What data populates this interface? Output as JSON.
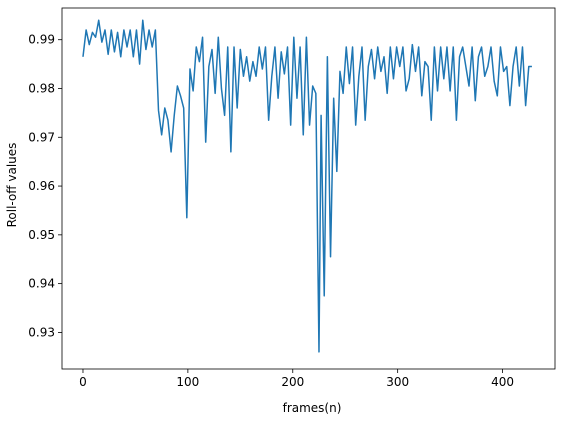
{
  "chart_data": {
    "type": "line",
    "title": "",
    "xlabel": "frames(n)",
    "ylabel": "Roll-off values",
    "xlim": [
      -20,
      450
    ],
    "ylim": [
      0.9225,
      0.9965
    ],
    "xticks": [
      0,
      100,
      200,
      300,
      400
    ],
    "yticks": [
      0.93,
      0.94,
      0.95,
      0.96,
      0.97,
      0.98,
      0.99
    ],
    "ytick_labels": [
      "0.93",
      "0.94",
      "0.95",
      "0.96",
      "0.97",
      "0.98",
      "0.99"
    ],
    "grid": false,
    "legend": "none",
    "line_color": "#1f77b4",
    "series": [
      {
        "x": [
          0,
          3,
          6,
          9,
          12,
          15,
          18,
          21,
          24,
          27,
          30,
          33,
          36,
          39,
          42,
          45,
          48,
          51,
          54,
          57,
          60,
          63,
          66,
          69,
          72,
          75,
          78,
          81,
          84,
          87,
          90,
          93,
          96,
          99,
          102,
          105,
          108,
          111,
          114,
          117,
          120,
          123,
          126,
          129,
          132,
          135,
          138,
          141,
          144,
          147,
          150,
          153,
          156,
          159,
          162,
          165,
          168,
          171,
          174,
          177,
          180,
          183,
          186,
          189,
          192,
          195,
          198,
          201,
          204,
          207,
          210,
          213,
          216,
          219,
          222,
          225,
          227,
          230,
          233,
          236,
          239,
          242,
          245,
          248,
          251,
          254,
          257,
          260,
          263,
          266,
          269,
          272,
          275,
          278,
          281,
          284,
          287,
          290,
          293,
          296,
          299,
          302,
          305,
          308,
          311,
          314,
          317,
          320,
          323,
          326,
          329,
          332,
          335,
          338,
          341,
          344,
          347,
          350,
          353,
          356,
          359,
          362,
          365,
          368,
          371,
          374,
          377,
          380,
          383,
          386,
          389,
          392,
          395,
          398,
          401,
          404,
          407,
          410,
          413,
          416,
          419,
          422,
          425,
          428
        ],
        "y": [
          0.9865,
          0.992,
          0.989,
          0.9915,
          0.9905,
          0.994,
          0.9895,
          0.992,
          0.987,
          0.992,
          0.9875,
          0.9915,
          0.9865,
          0.992,
          0.9885,
          0.992,
          0.9865,
          0.992,
          0.985,
          0.994,
          0.988,
          0.992,
          0.9885,
          0.992,
          0.9755,
          0.9705,
          0.976,
          0.9735,
          0.967,
          0.9745,
          0.9805,
          0.9785,
          0.976,
          0.9535,
          0.984,
          0.9795,
          0.9885,
          0.9855,
          0.9905,
          0.969,
          0.9845,
          0.988,
          0.979,
          0.9905,
          0.98,
          0.9745,
          0.9885,
          0.967,
          0.9885,
          0.976,
          0.988,
          0.9825,
          0.9865,
          0.9815,
          0.9855,
          0.9825,
          0.9885,
          0.984,
          0.9885,
          0.9735,
          0.9825,
          0.9885,
          0.978,
          0.9875,
          0.983,
          0.9885,
          0.9725,
          0.9905,
          0.978,
          0.9885,
          0.9705,
          0.9905,
          0.9725,
          0.9805,
          0.979,
          0.926,
          0.9745,
          0.9375,
          0.9865,
          0.9455,
          0.978,
          0.963,
          0.9835,
          0.979,
          0.9885,
          0.981,
          0.9885,
          0.9725,
          0.9825,
          0.9885,
          0.9735,
          0.9845,
          0.988,
          0.982,
          0.9885,
          0.9835,
          0.9865,
          0.979,
          0.9885,
          0.982,
          0.9885,
          0.9845,
          0.9885,
          0.9795,
          0.982,
          0.989,
          0.9835,
          0.9885,
          0.9785,
          0.9855,
          0.9845,
          0.9735,
          0.9885,
          0.9795,
          0.9885,
          0.982,
          0.9885,
          0.9795,
          0.9885,
          0.9735,
          0.9865,
          0.9885,
          0.9845,
          0.9805,
          0.9885,
          0.9775,
          0.9865,
          0.9885,
          0.9825,
          0.9845,
          0.9885,
          0.9815,
          0.9785,
          0.9885,
          0.9835,
          0.9845,
          0.9765,
          0.9845,
          0.9885,
          0.9805,
          0.9885,
          0.9765,
          0.9845,
          0.9845
        ]
      }
    ]
  }
}
